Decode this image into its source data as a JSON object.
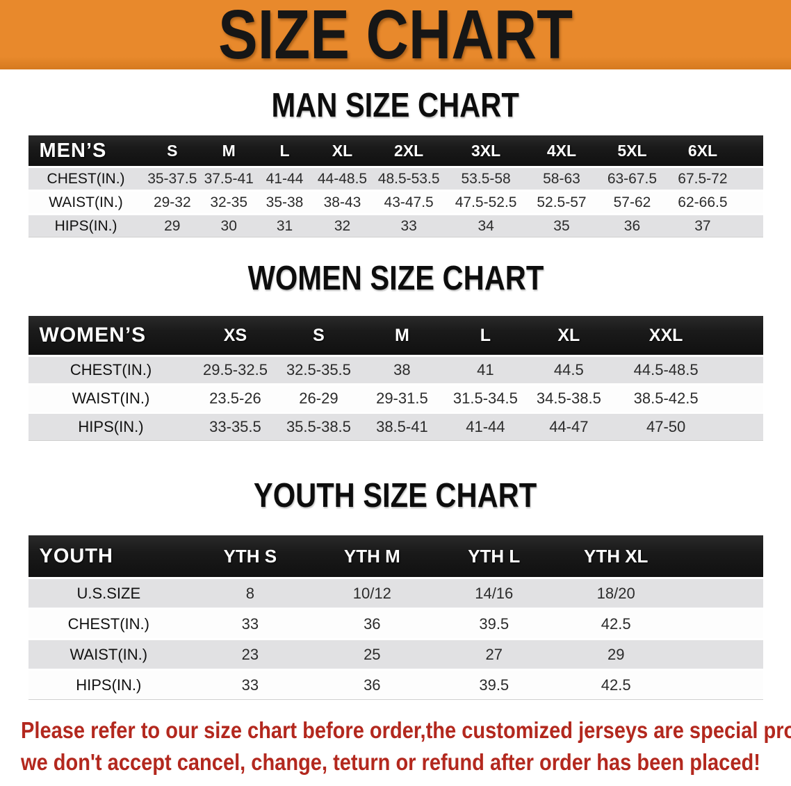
{
  "banner": {
    "title": "SIZE CHART"
  },
  "men": {
    "heading": "MAN SIZE CHART",
    "title": "MEN’S",
    "sizes": [
      "S",
      "M",
      "L",
      "XL",
      "2XL",
      "3XL",
      "4XL",
      "5XL",
      "6XL"
    ],
    "rows": [
      {
        "label": "CHEST(IN.)",
        "values": [
          "35-37.5",
          "37.5-41",
          "41-44",
          "44-48.5",
          "48.5-53.5",
          "53.5-58",
          "58-63",
          "63-67.5",
          "67.5-72"
        ]
      },
      {
        "label": "WAIST(IN.)",
        "values": [
          "29-32",
          "32-35",
          "35-38",
          "38-43",
          "43-47.5",
          "47.5-52.5",
          "52.5-57",
          "57-62",
          "62-66.5"
        ]
      },
      {
        "label": "HIPS(IN.)",
        "values": [
          "29",
          "30",
          "31",
          "32",
          "33",
          "34",
          "35",
          "36",
          "37"
        ]
      }
    ]
  },
  "women": {
    "heading": "WOMEN SIZE CHART",
    "title": "WOMEN’S",
    "sizes": [
      "XS",
      "S",
      "M",
      "L",
      "XL",
      "XXL"
    ],
    "rows": [
      {
        "label": "CHEST(IN.)",
        "values": [
          "29.5-32.5",
          "32.5-35.5",
          "38",
          "41",
          "44.5",
          "44.5-48.5"
        ]
      },
      {
        "label": "WAIST(IN.)",
        "values": [
          "23.5-26",
          "26-29",
          "29-31.5",
          "31.5-34.5",
          "34.5-38.5",
          "38.5-42.5"
        ]
      },
      {
        "label": "HIPS(IN.)",
        "values": [
          "33-35.5",
          "35.5-38.5",
          "38.5-41",
          "41-44",
          "44-47",
          "47-50"
        ]
      }
    ]
  },
  "youth": {
    "heading": "YOUTH SIZE CHART",
    "title": "YOUTH",
    "sizes": [
      "YTH S",
      "YTH M",
      "YTH L",
      "YTH XL"
    ],
    "rows": [
      {
        "label": "U.S.SIZE",
        "values": [
          "8",
          "10/12",
          "14/16",
          "18/20"
        ]
      },
      {
        "label": "CHEST(IN.)",
        "values": [
          "33",
          "36",
          "39.5",
          "42.5"
        ]
      },
      {
        "label": "WAIST(IN.)",
        "values": [
          "23",
          "25",
          "27",
          "29"
        ]
      },
      {
        "label": "HIPS(IN.)",
        "values": [
          "33",
          "36",
          "39.5",
          "42.5"
        ]
      }
    ]
  },
  "disclaimer": {
    "line1": "Please refer to our size chart before order,the customized jerseys are special products,",
    "line2": "we don't accept cancel, change, teturn or refund after order has been placed!"
  },
  "palette": {
    "banner-bg": "#E8892C",
    "banner-bg-dark": "#D5791F",
    "banner-text": "#161616",
    "bar-bg": "#1A1A1A",
    "bar-text": "#FFFFFF",
    "row-gray": "#E1E1E3",
    "row-white": "#FDFDFD",
    "label-text": "#111111",
    "value-text": "#2B2B2B",
    "disclaimer-red": "#B3281E"
  }
}
